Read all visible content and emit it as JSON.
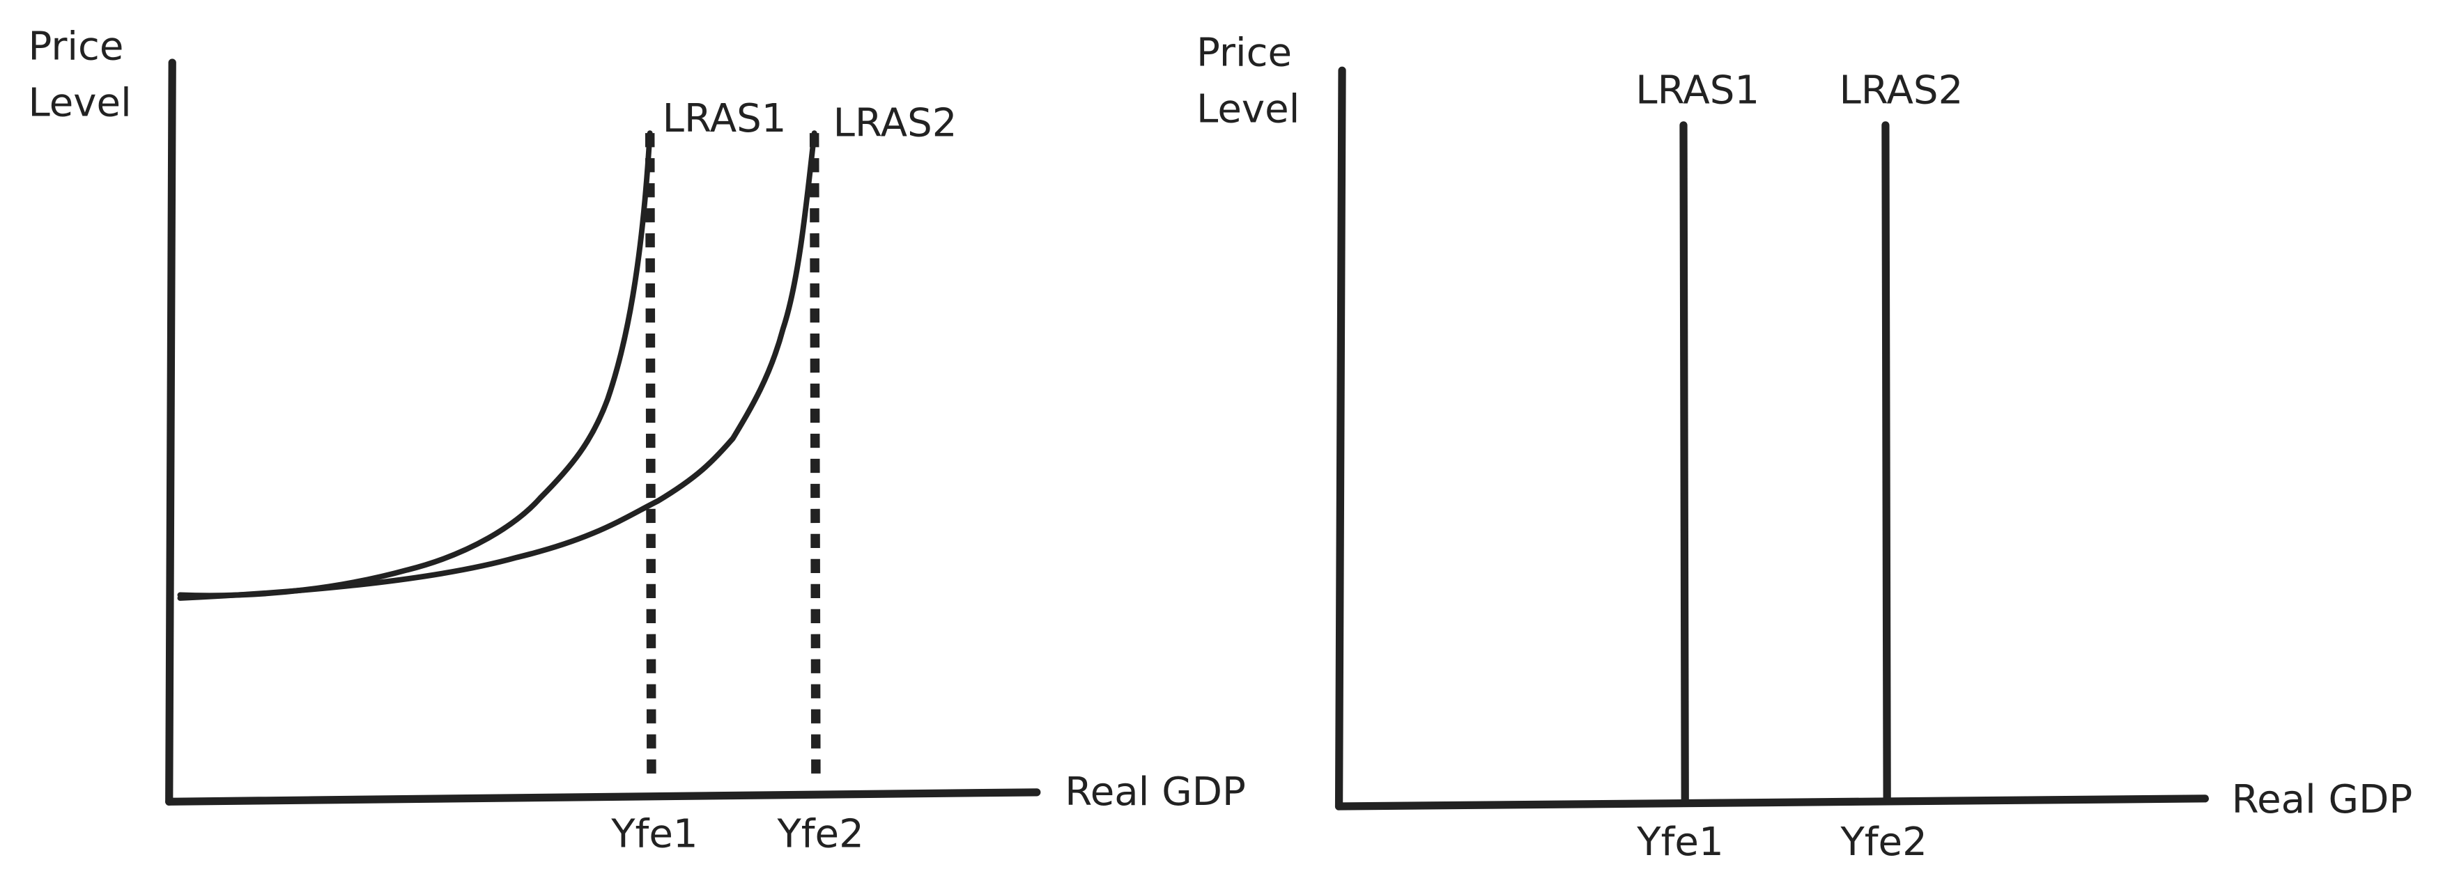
{
  "panels": [
    {
      "y_axis_label": [
        "Price",
        "Level"
      ],
      "x_axis_label": "Real GDP",
      "curves": [
        {
          "label": "LRAS1",
          "x_label": "Yfe1"
        },
        {
          "label": "LRAS2",
          "x_label": "Yfe2"
        }
      ]
    },
    {
      "y_axis_label": [
        "Price",
        "Level"
      ],
      "x_axis_label": "Real GDP",
      "curves": [
        {
          "label": "LRAS1",
          "x_label": "Yfe1"
        },
        {
          "label": "LRAS2",
          "x_label": "Yfe2"
        }
      ]
    }
  ]
}
